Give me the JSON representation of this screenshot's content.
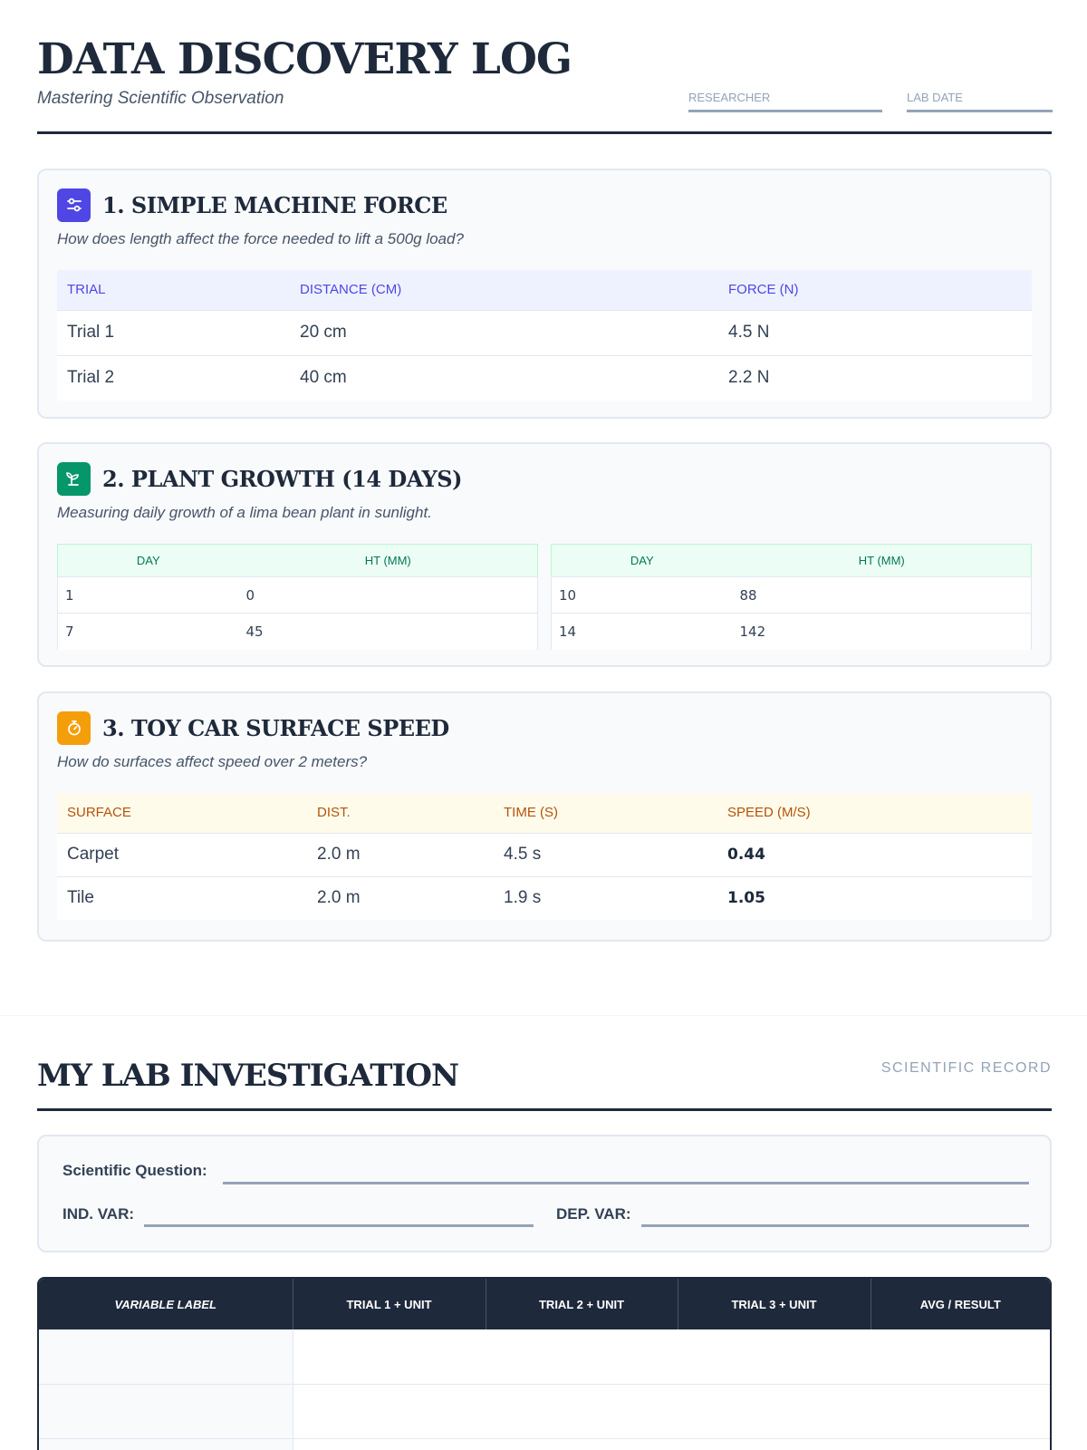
{
  "header": {
    "title": "DATA DISCOVERY LOG",
    "subtitle": "Mastering Scientific Observation",
    "researcher_label": "RESEARCHER",
    "lab_date_label": "LAB DATE"
  },
  "colors": {
    "machine_accent": "#4f46e5",
    "plant_accent": "#059669",
    "car_accent": "#f59e0b",
    "ink": "#1e293b"
  },
  "machine": {
    "icon": "sliders-icon",
    "title": "1. SIMPLE MACHINE FORCE",
    "question": "How does length affect the force needed to lift a 500g load?",
    "columns": [
      "TRIAL",
      "DISTANCE (CM)",
      "FORCE (N)"
    ],
    "rows": [
      [
        "Trial 1",
        "20 cm",
        "4.5 N"
      ],
      [
        "Trial 2",
        "40 cm",
        "2.2 N"
      ]
    ]
  },
  "plant": {
    "icon": "sprout-icon",
    "title": "2. PLANT GROWTH (14 DAYS)",
    "question": "Measuring daily growth of a lima bean plant in sunlight.",
    "columns": [
      "DAY",
      "HT (MM)"
    ],
    "left_rows": [
      [
        "1",
        "0"
      ],
      [
        "7",
        "45"
      ]
    ],
    "right_rows": [
      [
        "10",
        "88"
      ],
      [
        "14",
        "142"
      ]
    ]
  },
  "car": {
    "icon": "stopwatch-icon",
    "title": "3. TOY CAR SURFACE SPEED",
    "question": "How do surfaces affect speed over 2 meters?",
    "columns": [
      "SURFACE",
      "DIST.",
      "TIME (S)",
      "SPEED (M/S)"
    ],
    "rows": [
      [
        "Carpet",
        "2.0 m",
        "4.5 s",
        "0.44"
      ],
      [
        "Tile",
        "2.0 m",
        "1.9 s",
        "1.05"
      ]
    ]
  },
  "lab": {
    "title": "MY LAB INVESTIGATION",
    "tag": "SCIENTIFIC RECORD",
    "question_label": "Scientific Question:",
    "ind_var_label": "IND. VAR:",
    "dep_var_label": "DEP. VAR:",
    "columns": [
      "VARIABLE LABEL",
      "TRIAL 1 + UNIT",
      "TRIAL 2 + UNIT",
      "TRIAL 3 + UNIT",
      "AVG / RESULT"
    ]
  }
}
